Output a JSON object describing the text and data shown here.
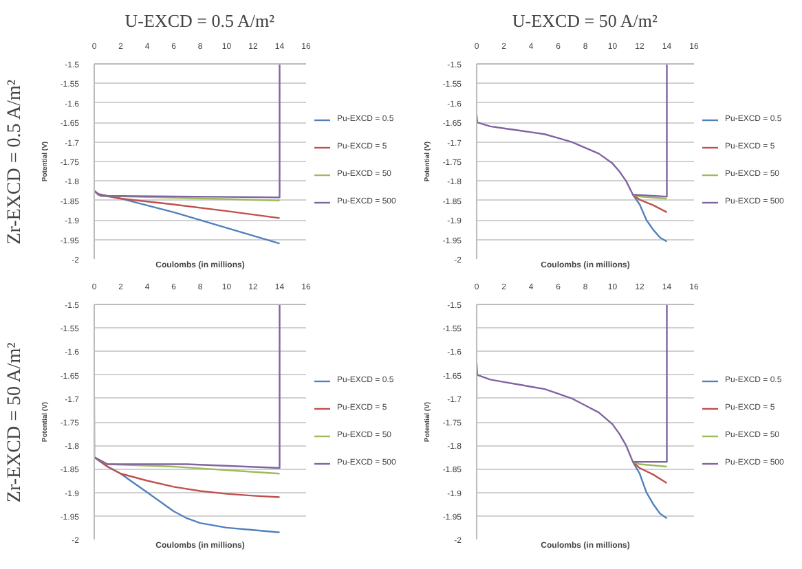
{
  "chart_data": [
    {
      "type": "line",
      "title": "U-EXCD = 0.5 A/m²",
      "annotations": [
        "Zr-EXCD = 0.5 A/m²"
      ],
      "xlabel": "Coulombs (in millions)",
      "ylabel": "Potential (V)",
      "xlim": [
        0,
        16
      ],
      "xticks": [
        0,
        2,
        4,
        6,
        8,
        10,
        12,
        14,
        16
      ],
      "ylim": [
        -2,
        -1.5
      ],
      "yticks": [
        -1.5,
        -1.55,
        -1.6,
        -1.65,
        -1.7,
        -1.75,
        -1.8,
        -1.85,
        -1.9,
        -1.95,
        -2
      ],
      "grid": "y",
      "legend": "right",
      "series": [
        {
          "name": "Pu-EXCD = 0.5",
          "color": "#4f81bd",
          "x": [
            0,
            0.3,
            2,
            6,
            10,
            14
          ],
          "values": [
            -1.825,
            -1.833,
            -1.845,
            -1.88,
            -1.92,
            -1.96
          ]
        },
        {
          "name": "Pu-EXCD = 5",
          "color": "#c0504d",
          "x": [
            0,
            0.3,
            2,
            6,
            10,
            14
          ],
          "values": [
            -1.825,
            -1.835,
            -1.845,
            -1.86,
            -1.877,
            -1.895
          ]
        },
        {
          "name": "Pu-EXCD = 50",
          "color": "#9bbb59",
          "x": [
            0,
            0.5,
            14
          ],
          "values": [
            -1.825,
            -1.838,
            -1.85
          ]
        },
        {
          "name": "Pu-EXCD = 500",
          "color": "#8064a2",
          "x": [
            0,
            0.5,
            14,
            14
          ],
          "values": [
            -1.825,
            -1.838,
            -1.842,
            -1.5
          ]
        }
      ]
    },
    {
      "type": "line",
      "title": "U-EXCD = 50 A/m²",
      "xlabel": "Coulombs (in millions)",
      "ylabel": "Potential (V)",
      "xlim": [
        0,
        16
      ],
      "xticks": [
        0,
        2,
        4,
        6,
        8,
        10,
        12,
        14,
        16
      ],
      "ylim": [
        -2,
        -1.5
      ],
      "yticks": [
        -1.5,
        -1.55,
        -1.6,
        -1.65,
        -1.7,
        -1.75,
        -1.8,
        -1.85,
        -1.9,
        -1.95,
        -2
      ],
      "grid": "y",
      "legend": "right",
      "series": [
        {
          "name": "Pu-EXCD = 0.5",
          "color": "#4f81bd",
          "x": [
            11.5,
            12,
            12.5,
            13,
            13.5,
            14
          ],
          "values": [
            -1.835,
            -1.86,
            -1.9,
            -1.925,
            -1.945,
            -1.955
          ]
        },
        {
          "name": "Pu-EXCD = 5",
          "color": "#c0504d",
          "x": [
            11.5,
            12,
            13,
            14
          ],
          "values": [
            -1.835,
            -1.848,
            -1.862,
            -1.88
          ]
        },
        {
          "name": "Pu-EXCD = 50",
          "color": "#9bbb59",
          "x": [
            11.5,
            12,
            14
          ],
          "values": [
            -1.835,
            -1.84,
            -1.845
          ]
        },
        {
          "name": "Pu-EXCD = 500",
          "color": "#8064a2",
          "x": [
            0,
            0.05,
            1,
            2,
            3,
            4,
            5,
            6,
            7,
            8,
            9,
            10,
            10.5,
            11,
            11.5,
            14,
            14
          ],
          "values": [
            -1.63,
            -1.65,
            -1.66,
            -1.665,
            -1.67,
            -1.675,
            -1.68,
            -1.69,
            -1.7,
            -1.715,
            -1.73,
            -1.755,
            -1.775,
            -1.8,
            -1.835,
            -1.84,
            -1.5
          ]
        }
      ]
    },
    {
      "type": "line",
      "annotations": [
        "Zr-EXCD = 50 A/m²"
      ],
      "xlabel": "Coulombs (in millions)",
      "ylabel": "Potential (V)",
      "xlim": [
        0,
        16
      ],
      "xticks": [
        0,
        2,
        4,
        6,
        8,
        10,
        12,
        14,
        16
      ],
      "ylim": [
        -2,
        -1.5
      ],
      "yticks": [
        -1.5,
        -1.55,
        -1.6,
        -1.65,
        -1.7,
        -1.75,
        -1.8,
        -1.85,
        -1.9,
        -1.95,
        -2
      ],
      "grid": "y",
      "legend": "right",
      "series": [
        {
          "name": "Pu-EXCD = 0.5",
          "color": "#4f81bd",
          "x": [
            0,
            1,
            2,
            3,
            4,
            5,
            6,
            7,
            8,
            10,
            12,
            14
          ],
          "values": [
            -1.825,
            -1.845,
            -1.86,
            -1.88,
            -1.9,
            -1.92,
            -1.94,
            -1.955,
            -1.965,
            -1.975,
            -1.98,
            -1.985
          ]
        },
        {
          "name": "Pu-EXCD = 5",
          "color": "#c0504d",
          "x": [
            0,
            1,
            2,
            4,
            6,
            8,
            10,
            12,
            14
          ],
          "values": [
            -1.825,
            -1.845,
            -1.86,
            -1.875,
            -1.888,
            -1.897,
            -1.903,
            -1.907,
            -1.91
          ]
        },
        {
          "name": "Pu-EXCD = 50",
          "color": "#9bbb59",
          "x": [
            0,
            0.02,
            1,
            6,
            14
          ],
          "values": [
            -1.7,
            -1.825,
            -1.84,
            -1.845,
            -1.86
          ]
        },
        {
          "name": "Pu-EXCD = 500",
          "color": "#8064a2",
          "x": [
            0,
            1,
            7,
            14,
            14
          ],
          "values": [
            -1.825,
            -1.84,
            -1.84,
            -1.848,
            -1.5
          ]
        }
      ]
    },
    {
      "type": "line",
      "xlabel": "Coulombs (in millions)",
      "ylabel": "Potential (V)",
      "xlim": [
        0,
        16
      ],
      "xticks": [
        0,
        2,
        4,
        6,
        8,
        10,
        12,
        14,
        16
      ],
      "ylim": [
        -2,
        -1.5
      ],
      "yticks": [
        -1.5,
        -1.55,
        -1.6,
        -1.65,
        -1.7,
        -1.75,
        -1.8,
        -1.85,
        -1.9,
        -1.95,
        -2
      ],
      "grid": "y",
      "legend": "right",
      "series": [
        {
          "name": "Pu-EXCD = 0.5",
          "color": "#4f81bd",
          "x": [
            11.5,
            12,
            12.5,
            13,
            13.5,
            14
          ],
          "values": [
            -1.835,
            -1.86,
            -1.9,
            -1.925,
            -1.945,
            -1.955
          ]
        },
        {
          "name": "Pu-EXCD = 5",
          "color": "#c0504d",
          "x": [
            11.5,
            12,
            13,
            14
          ],
          "values": [
            -1.835,
            -1.848,
            -1.862,
            -1.88
          ]
        },
        {
          "name": "Pu-EXCD = 50",
          "color": "#9bbb59",
          "x": [
            0,
            0,
            null,
            11.5,
            12,
            14
          ],
          "values": [
            -1.7,
            -1.65,
            null,
            -1.835,
            -1.84,
            -1.845
          ]
        },
        {
          "name": "Pu-EXCD = 500",
          "color": "#8064a2",
          "x": [
            0,
            0.05,
            1,
            2,
            3,
            4,
            5,
            6,
            7,
            8,
            9,
            10,
            10.5,
            11,
            11.5,
            14,
            14
          ],
          "values": [
            -1.625,
            -1.65,
            -1.66,
            -1.665,
            -1.67,
            -1.675,
            -1.68,
            -1.69,
            -1.7,
            -1.715,
            -1.73,
            -1.755,
            -1.775,
            -1.8,
            -1.835,
            -1.835,
            -1.5
          ]
        }
      ]
    }
  ]
}
